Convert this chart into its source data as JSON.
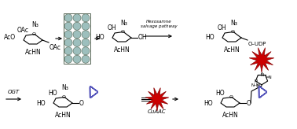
{
  "bg_color": "#ffffff",
  "fig_width": 3.78,
  "fig_height": 1.64,
  "dpi": 100,
  "black": "#000000",
  "red": "#cc0000",
  "blue": "#5555bb",
  "gray_face": "#9dbfbd",
  "gray_edge": "#556655",
  "label_hexosamne": "Hexosamne\nsalvage pathway",
  "label_ogt": "OGT",
  "label_cuaac": "CuAAC"
}
